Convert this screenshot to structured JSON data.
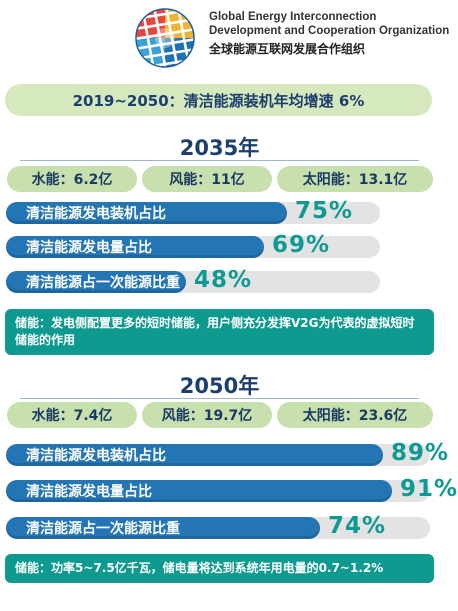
{
  "header": {
    "org_en_line1": "Global Energy Interconnection",
    "org_en_line2": "Development and Cooperation Organization",
    "org_cn": "全球能源互联网发展合作组织",
    "logo_icon": "globe-logo-icon"
  },
  "banner": {
    "text": "2019~2050：清洁能源装机年均增速 6%"
  },
  "sections": [
    {
      "year": "2035年",
      "energy": [
        {
          "label": "水能：6.2亿"
        },
        {
          "label": "风能：11亿"
        },
        {
          "label": "太阳能：13.1亿"
        }
      ],
      "bars": [
        {
          "label": "清洁能源发电装机占比",
          "value_text": "75%",
          "value": 75
        },
        {
          "label": "清洁能源发电量占比",
          "value_text": "69%",
          "value": 69
        },
        {
          "label": "清洁能源占一次能源比重",
          "value_text": "48%",
          "value": 48
        }
      ],
      "note": "储能：发电侧配置更多的短时储能，用户侧充分发挥V2G为代表的虚拟短时储能的作用"
    },
    {
      "year": "2050年",
      "energy": [
        {
          "label": "水能：7.4亿"
        },
        {
          "label": "风能：19.7亿"
        },
        {
          "label": "太阳能：23.6亿"
        }
      ],
      "bars": [
        {
          "label": "清洁能源发电装机占比",
          "value_text": "89%",
          "value": 89
        },
        {
          "label": "清洁能源发电量占比",
          "value_text": "91%",
          "value": 91
        },
        {
          "label": "清洁能源占一次能源比重",
          "value_text": "74%",
          "value": 74
        }
      ],
      "note": "储能：功率5~7.5亿千瓦，储电量将达到系统年用电量的0.7~1.2%"
    }
  ],
  "colors": {
    "bar_fill": "#2375b3",
    "value_text": "#0e9a92",
    "energy_pill": "#c8dfae",
    "banner": "#d6e8bd",
    "note_bg": "#0f9a90",
    "title": "#1c3f6e"
  }
}
